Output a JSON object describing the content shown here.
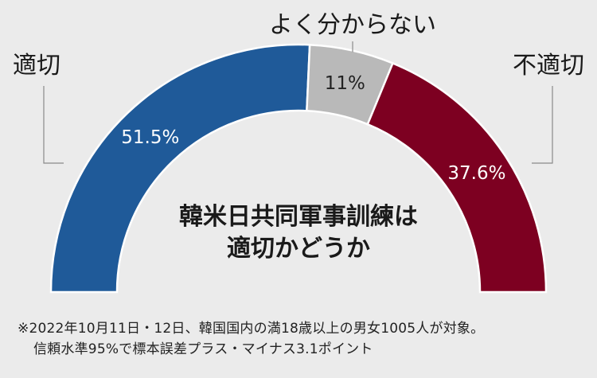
{
  "chart_data": {
    "type": "pie",
    "variant": "half-donut",
    "title": "韓米日共同軍事訓練は適切かどうか",
    "title_lines": [
      "韓米日共同軍事訓練は",
      "適切かどうか"
    ],
    "categories": [
      "適切",
      "よく分からない",
      "不適切"
    ],
    "values": [
      51.5,
      11,
      37.6
    ],
    "value_labels": [
      "51.5%",
      "11%",
      "37.6%"
    ],
    "colors": [
      "#1f5a99",
      "#b9b9b9",
      "#7d0021"
    ],
    "label_colors": [
      "#ffffff",
      "#222222",
      "#ffffff"
    ],
    "legend": "none"
  },
  "footnote": {
    "line1": "※2022年10月11日・12日、韓国国内の満18歳以上の男女1005人が対象。",
    "line2": "信頼水準95%で標本誤差プラス・マイナス3.1ポイント"
  },
  "colors": {
    "background": "#ebebeb",
    "leader_line": "#8a8a8a"
  }
}
